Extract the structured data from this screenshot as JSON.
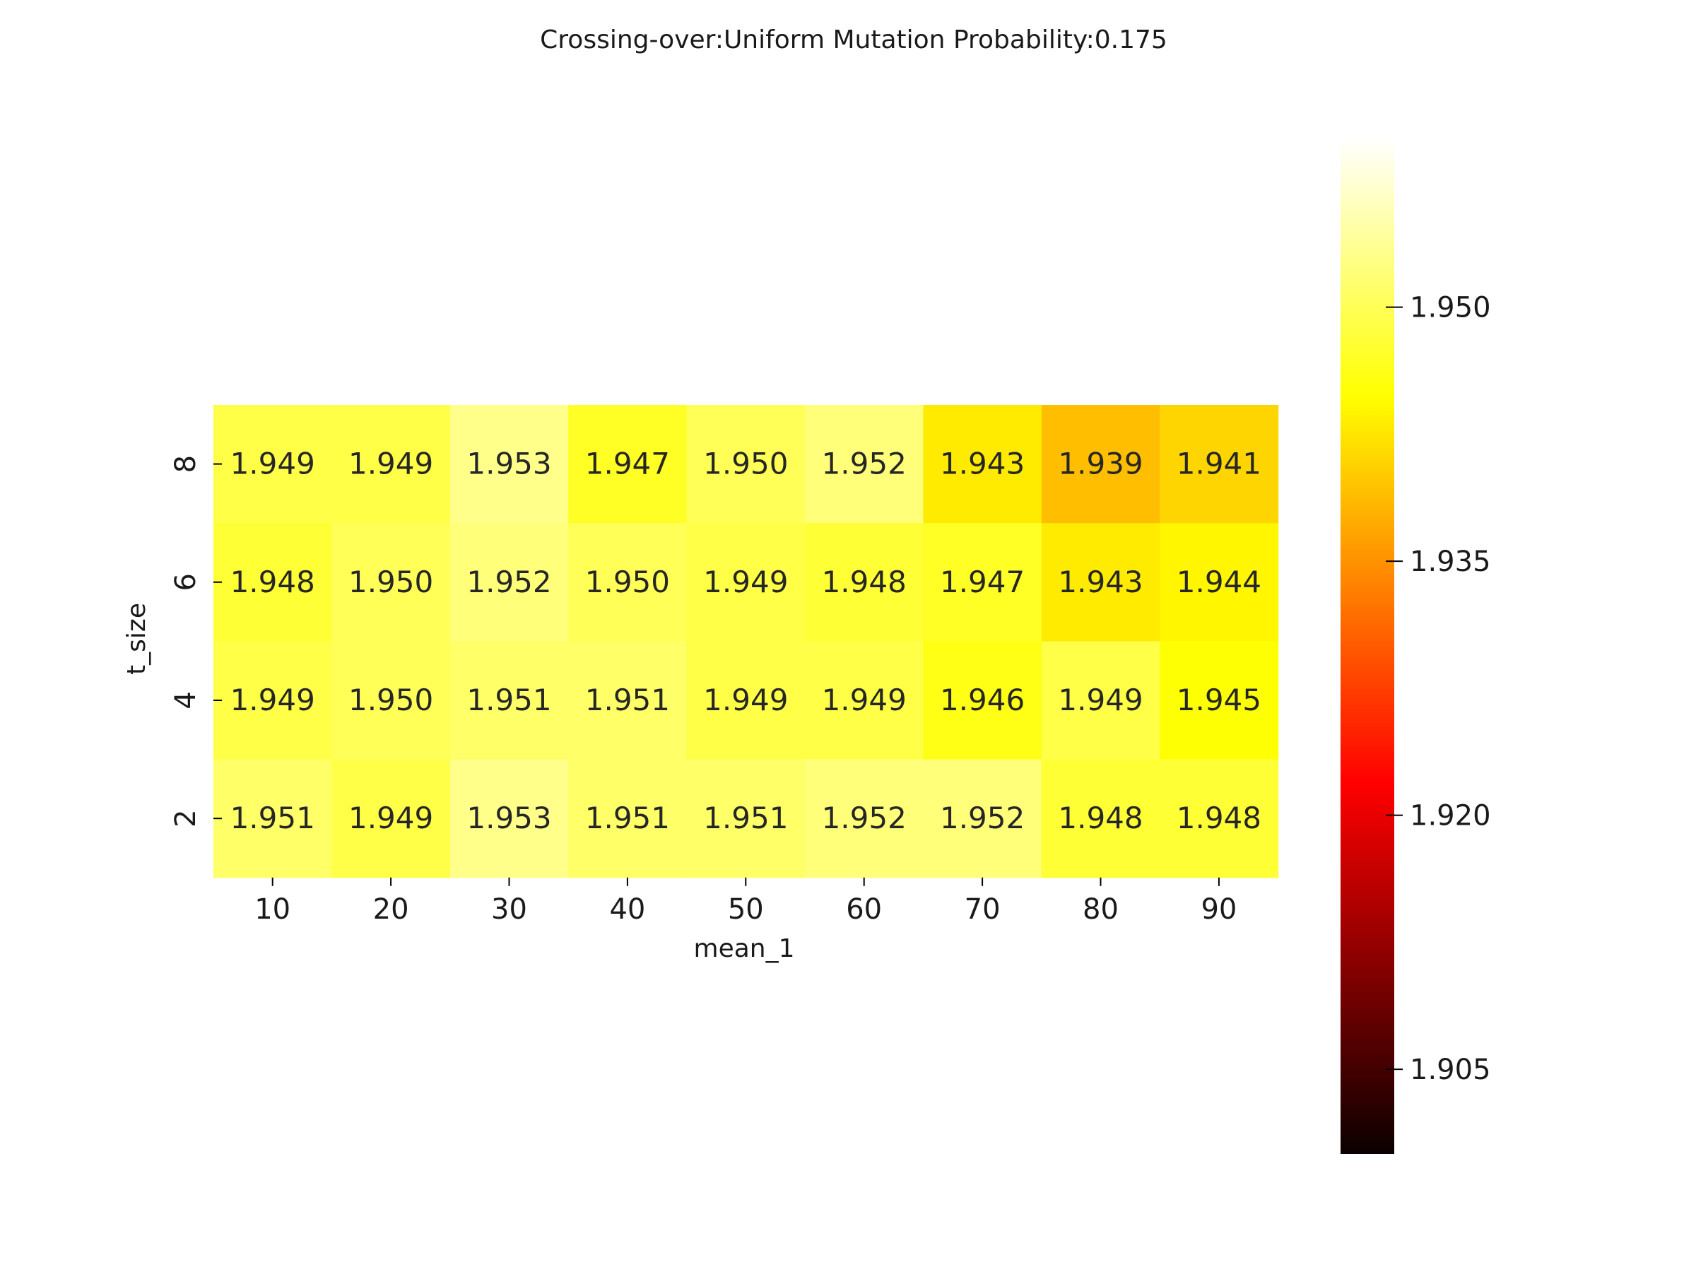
{
  "chart_data": {
    "type": "heatmap",
    "title": "Crossing-over:Uniform Mutation Probability:0.175",
    "xlabel": "mean_1",
    "ylabel": "t_size",
    "x_categories": [
      "10",
      "20",
      "30",
      "40",
      "50",
      "60",
      "70",
      "80",
      "90"
    ],
    "y_categories": [
      "8",
      "6",
      "4",
      "2"
    ],
    "values": [
      [
        1.949,
        1.949,
        1.953,
        1.947,
        1.95,
        1.952,
        1.943,
        1.939,
        1.941
      ],
      [
        1.948,
        1.95,
        1.952,
        1.95,
        1.949,
        1.948,
        1.947,
        1.943,
        1.944
      ],
      [
        1.949,
        1.95,
        1.951,
        1.951,
        1.949,
        1.949,
        1.946,
        1.949,
        1.945
      ],
      [
        1.951,
        1.949,
        1.953,
        1.951,
        1.951,
        1.952,
        1.952,
        1.948,
        1.948
      ]
    ],
    "colormap": "hot",
    "colorbar": {
      "range": [
        1.9,
        1.96
      ],
      "ticks": [
        1.905,
        1.92,
        1.935,
        1.95
      ],
      "tick_labels": [
        "1.905",
        "1.920",
        "1.935",
        "1.950"
      ]
    }
  }
}
